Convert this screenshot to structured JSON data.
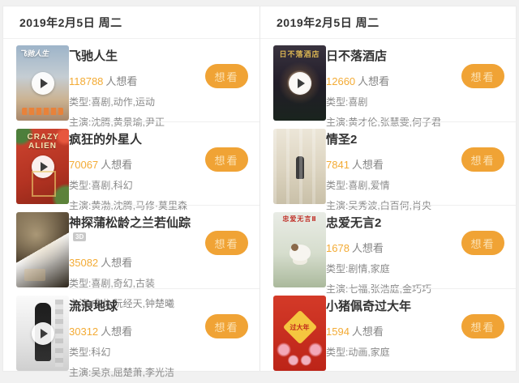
{
  "labels": {
    "want": "想看",
    "people": "人想看"
  },
  "colors": {
    "accent": "#f0a335",
    "count": "#f3ab35",
    "title": "#333333",
    "meta": "#8a8a8a"
  },
  "left": {
    "date": "2019年2月5日 周二",
    "movies": [
      {
        "title": "飞驰人生",
        "count": "118788",
        "type": "类型:喜剧,动作,运动",
        "cast": "主演:沈腾,黄景瑜,尹正",
        "poster_text": "飞驰人生",
        "has_play": true
      },
      {
        "title": "疯狂的外星人",
        "count": "70067",
        "type": "类型:喜剧,科幻",
        "cast": "主演:黄渤,沈腾,马修·莫里森",
        "poster_text": "CRAZY ALIEN",
        "has_play": true
      },
      {
        "title": "神探蒲松龄之兰若仙踪",
        "badge": "3D",
        "count": "35082",
        "type": "类型:喜剧,奇幻,古装",
        "cast": "主演:成龙,阮经天,钟楚曦",
        "has_play": false
      },
      {
        "title": "流浪地球",
        "count": "30312",
        "type": "类型:科幻",
        "cast": "主演:吴京,屈楚萧,李光洁",
        "has_play": true
      }
    ]
  },
  "right": {
    "date": "2019年2月5日 周二",
    "movies": [
      {
        "title": "日不落酒店",
        "count": "12660",
        "type": "类型:喜剧",
        "cast": "主演:黄才伦,张慧雯,何子君",
        "poster_text": "日不落酒店",
        "has_play": true
      },
      {
        "title": "情圣2",
        "count": "7841",
        "type": "类型:喜剧,爱情",
        "cast": "主演:吴秀波,白百何,肖央",
        "has_play": false
      },
      {
        "title": "忠爱无言2",
        "count": "1678",
        "type": "类型:剧情,家庭",
        "cast": "主演:七福,张浩庭,金巧巧",
        "poster_text": "忠爱无言Ⅱ",
        "has_play": false
      },
      {
        "title": "小猪佩奇过大年",
        "count": "1594",
        "type": "类型:动画,家庭",
        "poster_text": "过大年",
        "has_play": false
      }
    ]
  }
}
